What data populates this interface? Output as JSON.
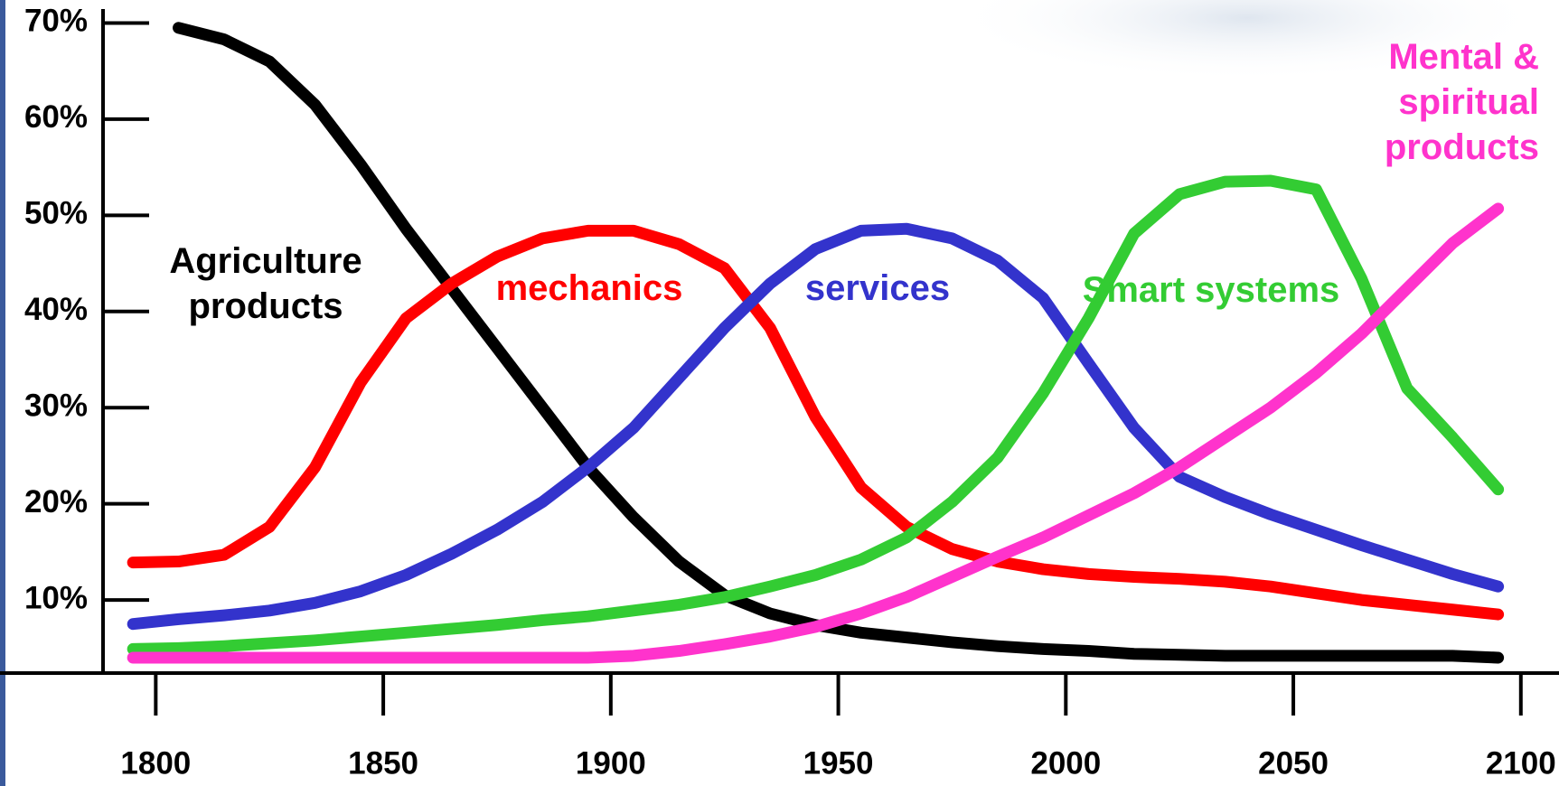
{
  "chart_data": {
    "type": "line",
    "x": [
      1795,
      1805,
      1815,
      1825,
      1835,
      1845,
      1855,
      1865,
      1875,
      1885,
      1895,
      1905,
      1915,
      1925,
      1935,
      1945,
      1955,
      1965,
      1975,
      1985,
      1995,
      2005,
      2015,
      2025,
      2035,
      2045,
      2055,
      2065,
      2075,
      2085,
      2095
    ],
    "series": [
      {
        "name": "Agriculture products",
        "color": "#000000",
        "values": [
          null,
          69.5,
          68.3,
          66,
          61.5,
          55.3,
          48.6,
          42.4,
          36.2,
          30,
          23.8,
          18.6,
          14,
          10.5,
          8.6,
          7.4,
          6.6,
          6.1,
          5.6,
          5.2,
          4.9,
          4.7,
          4.4,
          4.3,
          4.2,
          4.2,
          4.2,
          4.2,
          4.2,
          4.2,
          4.0
        ]
      },
      {
        "name": "mechanics",
        "color": "#ff0000",
        "values": [
          13.9,
          14,
          14.7,
          17.6,
          23.8,
          32.6,
          39.3,
          42.9,
          45.7,
          47.6,
          48.4,
          48.4,
          47,
          44.5,
          38.3,
          29,
          21.7,
          17.6,
          15.3,
          14,
          13.2,
          12.7,
          12.4,
          12.2,
          11.9,
          11.4,
          10.7,
          10,
          9.5,
          9,
          8.5
        ]
      },
      {
        "name": "services",
        "color": "#3333cc",
        "values": [
          7.5,
          8,
          8.4,
          8.9,
          9.7,
          10.9,
          12.6,
          14.8,
          17.3,
          20.2,
          23.8,
          27.9,
          33.1,
          38.3,
          42.9,
          46.5,
          48.4,
          48.6,
          47.6,
          45.3,
          41.4,
          34.6,
          27.9,
          22.8,
          20.7,
          18.9,
          17.3,
          15.7,
          14.2,
          12.7,
          11.4
        ]
      },
      {
        "name": "Smart systems",
        "color": "#33cc33",
        "values": [
          4.9,
          5,
          5.2,
          5.5,
          5.8,
          6.2,
          6.6,
          7,
          7.4,
          7.9,
          8.3,
          8.9,
          9.5,
          10.3,
          11.4,
          12.6,
          14.2,
          16.5,
          20.2,
          24.8,
          31.5,
          39.3,
          48.1,
          52.2,
          53.5,
          53.6,
          52.7,
          43.4,
          32,
          26.9,
          21.5
        ]
      },
      {
        "name": "Mental & spiritual products",
        "color": "#ff33cc",
        "values": [
          4,
          4,
          4,
          4,
          4,
          4,
          4,
          4,
          4,
          4,
          4,
          4.2,
          4.7,
          5.4,
          6.2,
          7.2,
          8.6,
          10.3,
          12.4,
          14.5,
          16.5,
          18.8,
          21.1,
          23.8,
          26.9,
          30,
          33.6,
          37.7,
          42.4,
          47.1,
          50.7
        ]
      }
    ],
    "xlim": [
      1790,
      2106
    ],
    "xticks": [
      1800,
      1850,
      1900,
      1950,
      2000,
      2050,
      2100
    ],
    "ylim": [
      2.4,
      71.5
    ],
    "yticks": [
      {
        "value": 10,
        "label": "10%"
      },
      {
        "value": 20,
        "label": "20%"
      },
      {
        "value": 30,
        "label": "30%"
      },
      {
        "value": 40,
        "label": "40%"
      },
      {
        "value": 50,
        "label": "50%"
      },
      {
        "value": 60,
        "label": "60%"
      },
      {
        "value": 70,
        "label": "70%"
      }
    ]
  }
}
